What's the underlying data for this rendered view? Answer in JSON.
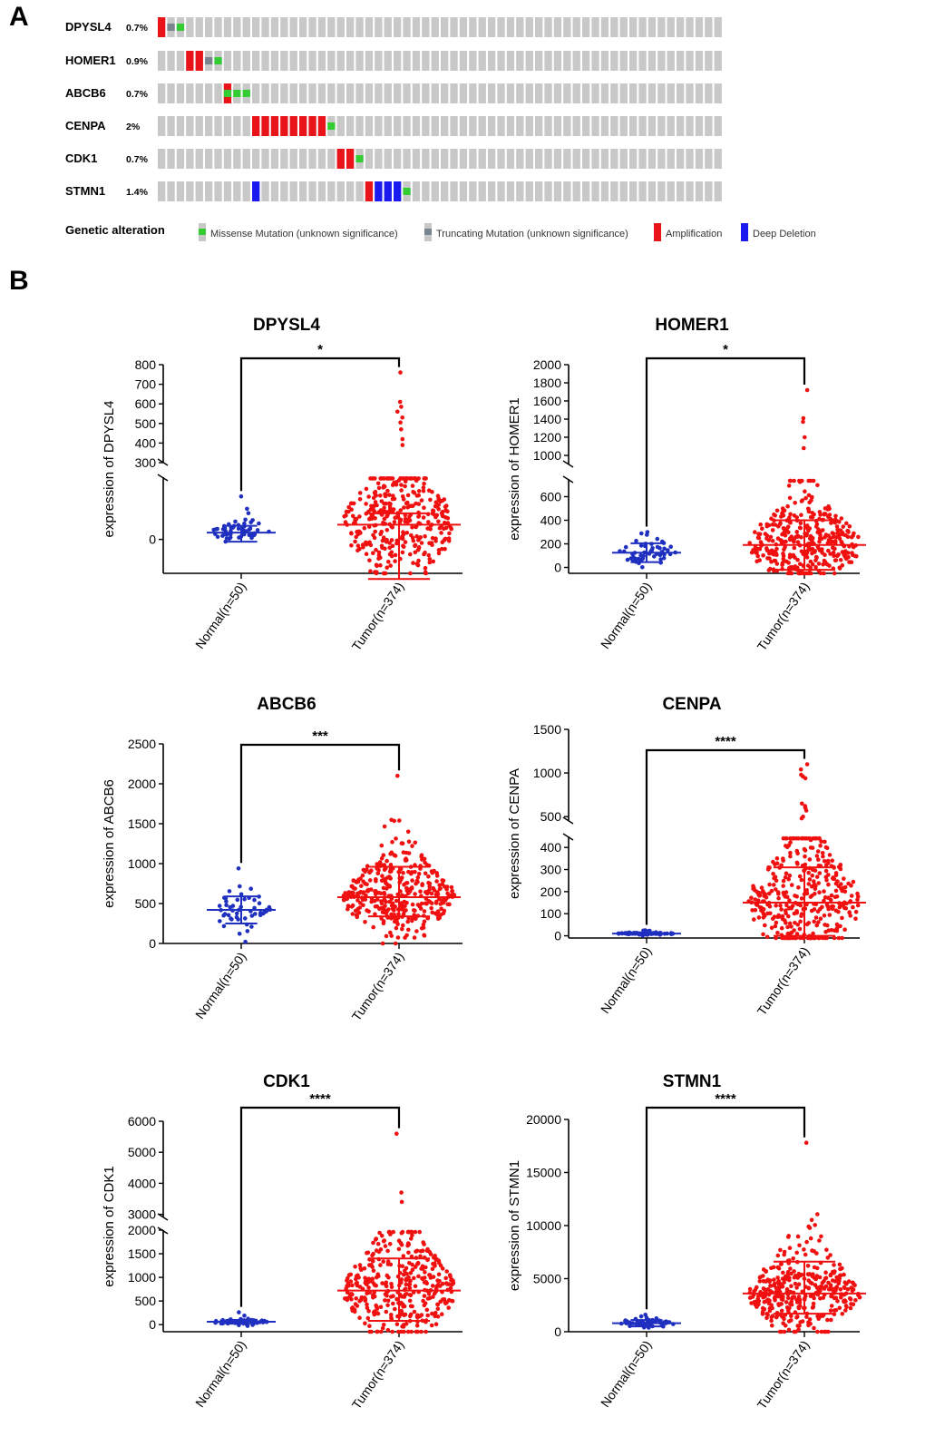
{
  "panel_labels": {
    "a": "A",
    "b": "B"
  },
  "oncoprint": {
    "total_cells": 60,
    "colors": {
      "background": "#c8c8c8",
      "missense": "#33cc33",
      "truncating": "#7a8590",
      "amplification": "#e8141a",
      "deep_deletion": "#1a1aee"
    },
    "rows": [
      {
        "gene": "DPYSL4",
        "pct": "0.7%",
        "alterations": [
          {
            "i": 0,
            "type": "amplification"
          },
          {
            "i": 1,
            "type": "truncating"
          },
          {
            "i": 2,
            "type": "missense"
          }
        ]
      },
      {
        "gene": "HOMER1",
        "pct": "0.9%",
        "alterations": [
          {
            "i": 3,
            "type": "amplification"
          },
          {
            "i": 4,
            "type": "amplification"
          },
          {
            "i": 5,
            "type": "truncating"
          },
          {
            "i": 6,
            "type": "missense"
          }
        ]
      },
      {
        "gene": "ABCB6",
        "pct": "0.7%",
        "alterations": [
          {
            "i": 7,
            "type": "amplification",
            "missense": true
          },
          {
            "i": 8,
            "type": "missense"
          },
          {
            "i": 9,
            "type": "missense"
          }
        ]
      },
      {
        "gene": "CENPA",
        "pct": "2%",
        "alterations": [
          {
            "i": 10,
            "type": "amplification"
          },
          {
            "i": 11,
            "type": "amplification"
          },
          {
            "i": 12,
            "type": "amplification"
          },
          {
            "i": 13,
            "type": "amplification"
          },
          {
            "i": 14,
            "type": "amplification"
          },
          {
            "i": 15,
            "type": "amplification"
          },
          {
            "i": 16,
            "type": "amplification"
          },
          {
            "i": 17,
            "type": "amplification"
          },
          {
            "i": 18,
            "type": "missense"
          }
        ]
      },
      {
        "gene": "CDK1",
        "pct": "0.7%",
        "alterations": [
          {
            "i": 19,
            "type": "amplification"
          },
          {
            "i": 20,
            "type": "amplification"
          },
          {
            "i": 21,
            "type": "missense"
          }
        ]
      },
      {
        "gene": "STMN1",
        "pct": "1.4%",
        "alterations": [
          {
            "i": 10,
            "type": "deep_deletion"
          },
          {
            "i": 22,
            "type": "amplification"
          },
          {
            "i": 23,
            "type": "deep_deletion"
          },
          {
            "i": 24,
            "type": "deep_deletion"
          },
          {
            "i": 25,
            "type": "deep_deletion"
          },
          {
            "i": 26,
            "type": "missense"
          }
        ]
      }
    ],
    "legend": {
      "title": "Genetic alteration",
      "items": [
        {
          "label": "Missense Mutation (unknown significance)",
          "type": "missense"
        },
        {
          "label": "Truncating Mutation (unknown significance)",
          "type": "truncating"
        },
        {
          "label": "Amplification",
          "type": "amplification"
        },
        {
          "label": "Deep Deletion",
          "type": "deep_deletion"
        }
      ]
    }
  },
  "chart_data": [
    {
      "type": "scatter",
      "title": "DPYSL4",
      "ylabel": "expression of DPYSL4",
      "categories": [
        "Normal(n=50)",
        "Tumor(n=374)"
      ],
      "significance": "*",
      "ylim_upper": [
        300,
        800
      ],
      "ylim_lower": [
        -30,
        55
      ],
      "upper_ticks": [
        300,
        400,
        500,
        600,
        700,
        800
      ],
      "lower_ticks": [
        0
      ],
      "groups": [
        {
          "name": "Normal",
          "n": 50,
          "mean": 6,
          "sd_low": -2,
          "sd_high": 12,
          "color": "#1f2fbf",
          "max": 38
        },
        {
          "name": "Tumor",
          "n": 374,
          "mean": 13,
          "sd_low": -35,
          "sd_high": 23,
          "color": "#f01010",
          "max": 760,
          "outliers": [
            760,
            610,
            585,
            560,
            530,
            505,
            470,
            420,
            390
          ]
        }
      ]
    },
    {
      "type": "scatter",
      "title": "HOMER1",
      "ylabel": "expression of HOMER1",
      "categories": [
        "Normal(n=50)",
        "Tumor(n=374)"
      ],
      "significance": "*",
      "ylim_upper": [
        900,
        2000
      ],
      "ylim_lower": [
        -50,
        750
      ],
      "upper_ticks": [
        1000,
        1200,
        1400,
        1600,
        1800,
        2000
      ],
      "lower_ticks": [
        0,
        200,
        400,
        600
      ],
      "groups": [
        {
          "name": "Normal",
          "n": 50,
          "mean": 125,
          "sd_low": 45,
          "sd_high": 205,
          "color": "#1f2fbf",
          "max": 300
        },
        {
          "name": "Tumor",
          "n": 374,
          "mean": 190,
          "sd_low": -20,
          "sd_high": 400,
          "color": "#f01010",
          "max": 1720,
          "outliers": [
            1720,
            1410,
            1370,
            1200,
            1080
          ]
        }
      ]
    },
    {
      "type": "scatter",
      "title": "ABCB6",
      "ylabel": "expression of ABCB6",
      "categories": [
        "Normal(n=50)",
        "Tumor(n=374)"
      ],
      "significance": "***",
      "ylim": [
        0,
        2500
      ],
      "ticks": [
        0,
        500,
        1000,
        1500,
        2000,
        2500
      ],
      "groups": [
        {
          "name": "Normal",
          "n": 50,
          "mean": 420,
          "sd_low": 250,
          "sd_high": 590,
          "color": "#1f2fbf",
          "max": 940
        },
        {
          "name": "Tumor",
          "n": 374,
          "mean": 580,
          "sd_low": 340,
          "sd_high": 960,
          "color": "#f01010",
          "max": 2100
        }
      ]
    },
    {
      "type": "scatter",
      "title": "CENPA",
      "ylabel": "expression of CENPA",
      "categories": [
        "Normal(n=50)",
        "Tumor(n=374)"
      ],
      "significance": "****",
      "ylim_upper": [
        450,
        1500
      ],
      "ylim_lower": [
        -10,
        450
      ],
      "upper_ticks": [
        500,
        1000,
        1500
      ],
      "lower_ticks": [
        0,
        100,
        200,
        300,
        400
      ],
      "groups": [
        {
          "name": "Normal",
          "n": 50,
          "mean": 10,
          "sd_low": 5,
          "sd_high": 15,
          "color": "#1f2fbf",
          "max": 25
        },
        {
          "name": "Tumor",
          "n": 374,
          "mean": 150,
          "sd_low": 0,
          "sd_high": 310,
          "color": "#f01010",
          "max": 1100,
          "outliers": [
            1100,
            1040,
            980,
            960,
            940,
            650,
            620,
            600,
            570,
            500,
            480
          ]
        }
      ]
    },
    {
      "type": "scatter",
      "title": "CDK1",
      "ylabel": "expression of CDK1",
      "categories": [
        "Normal(n=50)",
        "Tumor(n=374)"
      ],
      "significance": "****",
      "ylim_upper": [
        2900,
        6000
      ],
      "ylim_lower": [
        -150,
        2000
      ],
      "upper_ticks": [
        3000,
        4000,
        5000,
        6000
      ],
      "lower_ticks": [
        0,
        500,
        1000,
        1500,
        2000
      ],
      "groups": [
        {
          "name": "Normal",
          "n": 50,
          "mean": 60,
          "sd_low": 20,
          "sd_high": 100,
          "color": "#1f2fbf",
          "max": 260
        },
        {
          "name": "Tumor",
          "n": 374,
          "mean": 720,
          "sd_low": 80,
          "sd_high": 1400,
          "color": "#f01010",
          "max": 5600,
          "outliers": [
            5600,
            3700,
            3400
          ]
        }
      ]
    },
    {
      "type": "scatter",
      "title": "STMN1",
      "ylabel": "expression of STMN1",
      "categories": [
        "Normal(n=50)",
        "Tumor(n=374)"
      ],
      "significance": "****",
      "ylim": [
        0,
        20000
      ],
      "ticks": [
        0,
        5000,
        10000,
        15000,
        20000
      ],
      "groups": [
        {
          "name": "Normal",
          "n": 50,
          "mean": 800,
          "sd_low": 500,
          "sd_high": 1100,
          "color": "#1f2fbf",
          "max": 1600
        },
        {
          "name": "Tumor",
          "n": 374,
          "mean": 3600,
          "sd_low": 1700,
          "sd_high": 6600,
          "color": "#f01010",
          "max": 17800
        }
      ]
    }
  ]
}
